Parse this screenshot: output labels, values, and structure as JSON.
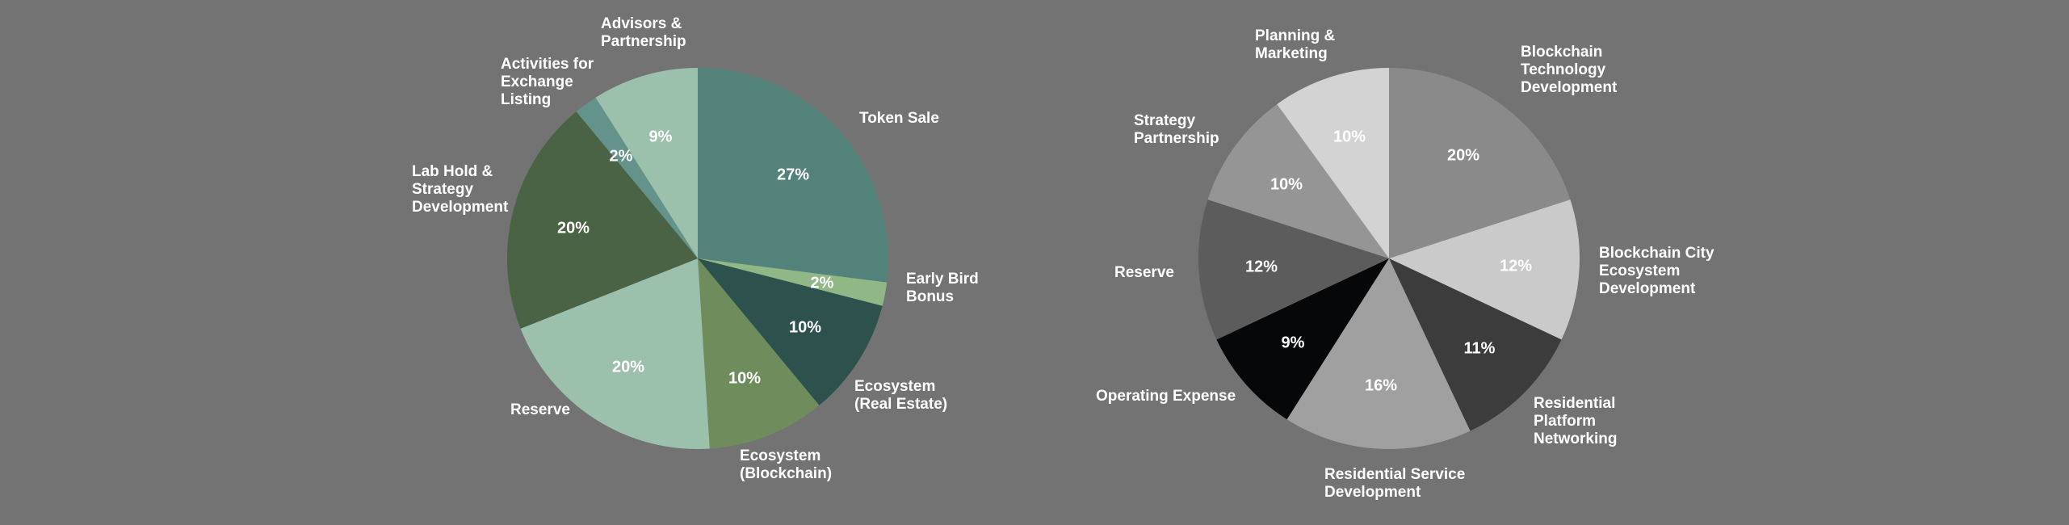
{
  "chart_data": [
    {
      "type": "pie",
      "title": "",
      "slices": [
        {
          "label": "Token Sale",
          "value": 27,
          "pct_label": "27%",
          "color": "#52827a"
        },
        {
          "label": "Early Bird Bonus",
          "value": 2,
          "pct_label": "2%",
          "color": "#90b887"
        },
        {
          "label": "Ecosystem (Real Estate)",
          "value": 10,
          "pct_label": "10%",
          "color": "#2d524e"
        },
        {
          "label": "Ecosystem (Blockchain)",
          "value": 10,
          "pct_label": "10%",
          "color": "#6f8d5c"
        },
        {
          "label": "Reserve",
          "value": 20,
          "pct_label": "20%",
          "color": "#9bc1ad"
        },
        {
          "label": "Lab Hold & Strategy Development",
          "value": 20,
          "pct_label": "20%",
          "color": "#4a6344"
        },
        {
          "label": "Activities for Exchange Listing",
          "value": 2,
          "pct_label": "2%",
          "color": "#64938b"
        },
        {
          "label": "Advisors & Partnership",
          "value": 9,
          "pct_label": "9%",
          "color": "#9bc1ad"
        }
      ]
    },
    {
      "type": "pie",
      "title": "",
      "slices": [
        {
          "label": "Blockchain Technology Development",
          "value": 20,
          "pct_label": "20%",
          "color": "#8a8a8a"
        },
        {
          "label": "Blockchain City Ecosystem Development",
          "value": 12,
          "pct_label": "12%",
          "color": "#cacaca"
        },
        {
          "label": "Residential Platform Networking",
          "value": 11,
          "pct_label": "11%",
          "color": "#3c3c3c"
        },
        {
          "label": "Residential Service Development",
          "value": 16,
          "pct_label": "16%",
          "color": "#a0a0a0"
        },
        {
          "label": "Operating Expense",
          "value": 9,
          "pct_label": "9%",
          "color": "#060708"
        },
        {
          "label": "Reserve",
          "value": 12,
          "pct_label": "12%",
          "color": "#5c5c5c"
        },
        {
          "label": "Strategy Partnership",
          "value": 10,
          "pct_label": "10%",
          "color": "#959595"
        },
        {
          "label": "Planning & Marketing",
          "value": 10,
          "pct_label": "10%",
          "color": "#d3d3d3"
        }
      ]
    }
  ]
}
